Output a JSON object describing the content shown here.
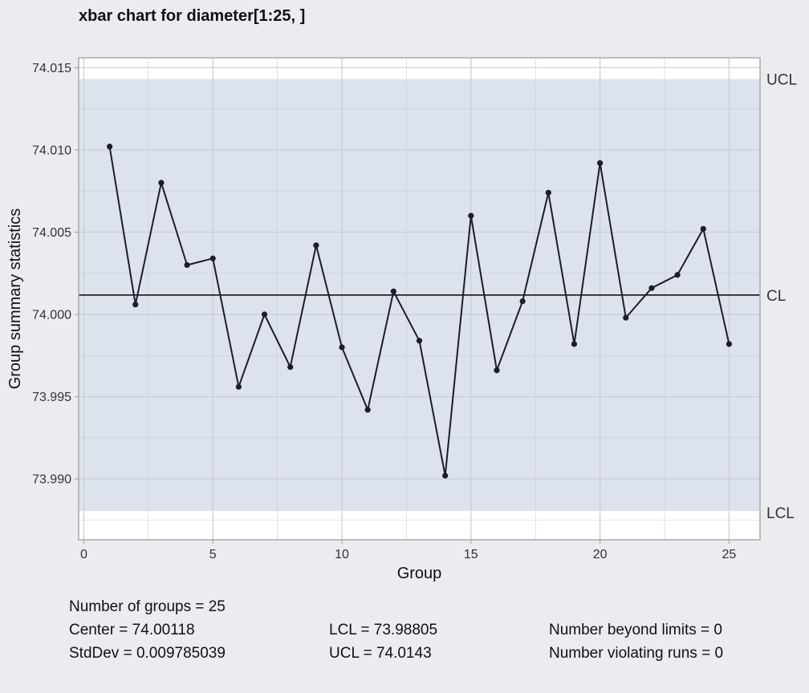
{
  "chart_data": {
    "type": "line",
    "title": "xbar chart for diameter[1:25, ]",
    "xlabel": "Group",
    "ylabel": "Group summary statistics",
    "xlim": [
      -0.2,
      26.2
    ],
    "ylim": [
      73.9863,
      74.0156
    ],
    "x_ticks": [
      0,
      5,
      10,
      15,
      20,
      25
    ],
    "x_tick_labels": [
      "0",
      "5",
      "10",
      "15",
      "20",
      "25"
    ],
    "y_ticks": [
      73.99,
      73.995,
      74.0,
      74.005,
      74.01,
      74.015
    ],
    "y_tick_labels": [
      "73.990",
      "73.995",
      "74.000",
      "74.005",
      "74.010",
      "74.015"
    ],
    "grid": true,
    "x": [
      1,
      2,
      3,
      4,
      5,
      6,
      7,
      8,
      9,
      10,
      11,
      12,
      13,
      14,
      15,
      16,
      17,
      18,
      19,
      20,
      21,
      22,
      23,
      24,
      25
    ],
    "values": [
      74.0102,
      74.0006,
      74.008,
      74.003,
      74.0034,
      73.9956,
      74.0,
      73.9968,
      74.0042,
      73.998,
      73.9942,
      74.0014,
      73.9984,
      73.9902,
      74.006,
      73.9966,
      74.0008,
      74.0074,
      73.9982,
      74.0092,
      73.9998,
      74.0016,
      74.0024,
      74.0052,
      73.9982
    ],
    "center": 74.00118,
    "ucl": 74.0143,
    "lcl": 73.98805,
    "limit_labels": {
      "ucl": "UCL",
      "cl": "CL",
      "lcl": "LCL"
    },
    "colors": {
      "background": "#ebecf0",
      "panel": "#ffffff",
      "band": "#dce3ec",
      "grid": "#c9ced6",
      "line": "#1a1e2a",
      "border": "#a9a9a9"
    }
  },
  "stats": {
    "groups": "Number of groups = 25",
    "center": "Center = 74.00118",
    "stddev": "StdDev = 0.009785039",
    "lcl": "LCL = 73.98805",
    "ucl": "UCL = 74.0143",
    "beyond": "Number beyond limits = 0",
    "violating": "Number violating runs = 0"
  }
}
